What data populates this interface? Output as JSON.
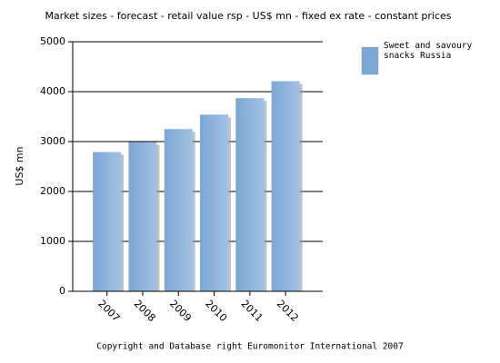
{
  "chart_data": {
    "type": "bar",
    "title": "Market sizes  -  forecast  - retail value rsp  - US$ mn  - fixed ex rate  - constant prices",
    "y_label": "US$ mn",
    "categories": [
      "2007",
      "2008",
      "2009",
      "2010",
      "2011",
      "2012"
    ],
    "series": [
      {
        "name": "Sweet and savoury snacks Russia",
        "color": "#7ba7d6",
        "values": [
          2790,
          2990,
          3250,
          3540,
          3870,
          4210
        ]
      }
    ],
    "ylim": [
      0,
      5000
    ],
    "yticks": [
      0,
      1000,
      2000,
      3000,
      4000,
      5000
    ],
    "grid": true,
    "legend": "top-right",
    "footer": "Copyright and Database right Euromonitor International 2007"
  }
}
